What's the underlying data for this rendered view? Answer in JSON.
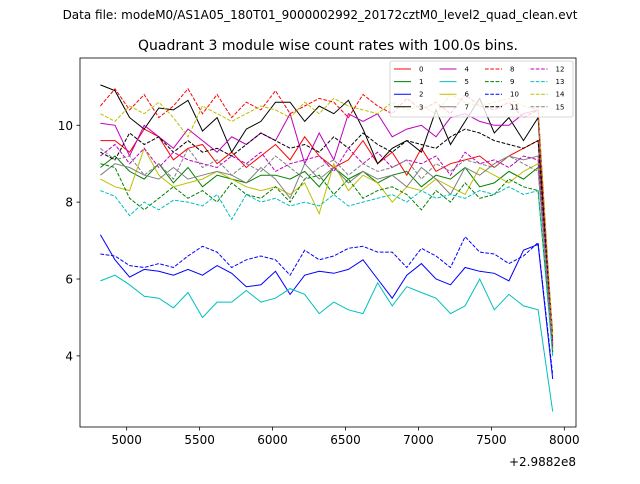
{
  "suptitle": "Data file: modeM0/AS1A05_180T01_9000002992_20172cztM0_level2_quad_clean.evt",
  "chart_data": {
    "type": "line",
    "title": "Quadrant 3 module wise count rates with 100.0s bins.",
    "xlabel": "",
    "ylabel": "",
    "x_offset_label": "+2.9882e8",
    "xlim": [
      4680,
      8080
    ],
    "ylim": [
      2.15,
      11.75
    ],
    "xticks": [
      5000,
      5500,
      6000,
      6500,
      7000,
      7500,
      8000
    ],
    "yticks": [
      4,
      6,
      8,
      10
    ],
    "grid": false,
    "legend_position": "top-right",
    "x": [
      4820,
      4920,
      5020,
      5120,
      5220,
      5320,
      5420,
      5520,
      5620,
      5720,
      5820,
      5920,
      6020,
      6120,
      6220,
      6320,
      6420,
      6520,
      6620,
      6720,
      6820,
      6920,
      7020,
      7120,
      7220,
      7320,
      7420,
      7520,
      7620,
      7720,
      7820,
      7920
    ],
    "series": [
      {
        "name": "0",
        "color": "#ff0000",
        "dash": "solid",
        "values": [
          9.6,
          9.6,
          9.3,
          9.9,
          9.7,
          9.1,
          9.4,
          9.5,
          9.0,
          9.3,
          8.9,
          9.2,
          9.5,
          9.1,
          9.7,
          9.2,
          8.9,
          9.1,
          9.6,
          9.0,
          9.3,
          8.7,
          9.4,
          8.8,
          9.0,
          9.1,
          9.2,
          8.9,
          9.2,
          9.4,
          9.6,
          4.6
        ]
      },
      {
        "name": "1",
        "color": "#008000",
        "dash": "solid",
        "values": [
          8.9,
          9.2,
          8.8,
          8.6,
          9.0,
          8.5,
          8.9,
          8.4,
          8.7,
          8.6,
          8.5,
          8.7,
          8.7,
          8.6,
          8.8,
          8.4,
          8.9,
          8.6,
          8.8,
          8.5,
          8.7,
          8.8,
          8.4,
          8.7,
          8.6,
          8.9,
          8.4,
          8.5,
          8.8,
          8.6,
          8.9,
          4.1
        ]
      },
      {
        "name": "2",
        "color": "#0000ff",
        "dash": "solid",
        "values": [
          7.15,
          6.5,
          6.05,
          6.25,
          6.2,
          6.1,
          6.25,
          6.1,
          6.35,
          6.15,
          5.8,
          5.85,
          6.2,
          5.6,
          6.1,
          6.2,
          6.15,
          6.25,
          6.5,
          6.0,
          5.5,
          6.1,
          6.4,
          6.0,
          5.85,
          6.3,
          6.2,
          6.15,
          5.95,
          6.75,
          6.9,
          3.4
        ]
      },
      {
        "name": "3",
        "color": "#000000",
        "dash": "solid",
        "values": [
          11.05,
          10.9,
          10.2,
          9.9,
          10.45,
          10.4,
          10.65,
          9.85,
          10.2,
          9.3,
          9.9,
          10.1,
          10.6,
          10.6,
          10.1,
          10.5,
          10.3,
          10.65,
          9.9,
          9.0,
          9.4,
          9.6,
          9.3,
          10.4,
          9.5,
          10.1,
          10.7,
          9.8,
          10.2,
          9.6,
          10.2,
          4.2
        ]
      },
      {
        "name": "4",
        "color": "#bf00bf",
        "dash": "solid",
        "values": [
          10.05,
          10.0,
          9.2,
          10.0,
          9.7,
          9.4,
          9.9,
          9.6,
          9.3,
          9.7,
          9.5,
          9.8,
          9.6,
          10.3,
          9.0,
          9.8,
          9.1,
          10.3,
          10.1,
          10.3,
          9.7,
          9.9,
          10.0,
          9.7,
          10.2,
          10.3,
          10.1,
          10.0,
          10.0,
          10.3,
          10.4,
          4.3
        ]
      },
      {
        "name": "5",
        "color": "#00bfbf",
        "dash": "solid",
        "values": [
          5.95,
          6.1,
          5.85,
          5.55,
          5.5,
          5.25,
          5.65,
          5.0,
          5.4,
          5.4,
          5.7,
          5.4,
          5.5,
          5.75,
          5.6,
          5.1,
          5.4,
          5.2,
          5.1,
          5.9,
          5.3,
          5.8,
          5.65,
          5.5,
          5.1,
          5.3,
          6.0,
          5.2,
          5.6,
          5.3,
          5.2,
          2.55
        ]
      },
      {
        "name": "6",
        "color": "#bfbf00",
        "dash": "solid",
        "values": [
          8.6,
          8.4,
          8.3,
          9.4,
          8.7,
          8.4,
          8.5,
          8.6,
          8.8,
          8.6,
          8.4,
          8.3,
          8.4,
          8.2,
          8.5,
          7.7,
          9.0,
          8.3,
          8.7,
          8.5,
          8.0,
          8.4,
          8.3,
          8.6,
          8.4,
          8.2,
          8.9,
          8.7,
          8.5,
          8.8,
          9.0,
          4.0
        ]
      },
      {
        "name": "7",
        "color": "#808080",
        "dash": "solid",
        "values": [
          8.7,
          9.0,
          8.9,
          8.7,
          8.6,
          8.9,
          8.6,
          8.7,
          8.8,
          8.7,
          8.5,
          8.9,
          8.6,
          8.1,
          9.0,
          8.6,
          8.9,
          8.5,
          8.8,
          8.6,
          8.7,
          8.4,
          8.9,
          8.6,
          8.2,
          8.9,
          8.7,
          9.0,
          9.2,
          9.1,
          9.2,
          4.5
        ]
      },
      {
        "name": "8",
        "color": "#ff0000",
        "dash": "dashed",
        "values": [
          10.5,
          10.95,
          10.4,
          10.8,
          10.2,
          10.5,
          10.95,
          10.3,
          10.8,
          10.2,
          10.6,
          10.4,
          10.9,
          10.3,
          10.5,
          10.7,
          10.6,
          10.2,
          10.8,
          10.5,
          10.3,
          10.7,
          10.4,
          10.6,
          10.3,
          10.8,
          10.5,
          10.4,
          10.6,
          10.2,
          10.4,
          4.3
        ]
      },
      {
        "name": "9",
        "color": "#008000",
        "dash": "dashed",
        "values": [
          9.0,
          8.9,
          8.1,
          7.8,
          8.1,
          8.4,
          8.1,
          8.3,
          8.0,
          8.5,
          8.2,
          8.1,
          8.4,
          8.0,
          8.6,
          8.7,
          8.2,
          8.6,
          8.1,
          8.3,
          8.4,
          8.2,
          7.8,
          8.3,
          8.0,
          8.5,
          8.1,
          8.2,
          8.6,
          8.4,
          8.3,
          4.1
        ]
      },
      {
        "name": "10",
        "color": "#0000ff",
        "dash": "dashed",
        "values": [
          6.65,
          6.6,
          6.35,
          6.3,
          6.4,
          6.3,
          6.6,
          6.85,
          6.7,
          6.3,
          6.5,
          6.6,
          6.5,
          6.1,
          6.75,
          6.5,
          6.6,
          6.8,
          6.85,
          6.7,
          6.7,
          6.3,
          6.8,
          6.6,
          6.3,
          7.1,
          6.7,
          6.65,
          6.4,
          6.6,
          6.95,
          3.5
        ]
      },
      {
        "name": "11",
        "color": "#000000",
        "dash": "dashed",
        "values": [
          9.3,
          9.1,
          9.8,
          9.5,
          9.7,
          9.3,
          9.6,
          9.3,
          9.4,
          9.2,
          9.5,
          9.8,
          9.6,
          9.4,
          9.5,
          9.3,
          9.7,
          9.4,
          9.8,
          9.5,
          9.3,
          9.6,
          9.5,
          9.4,
          9.7,
          9.9,
          9.8,
          9.6,
          9.5,
          9.4,
          9.6,
          4.4
        ]
      },
      {
        "name": "12",
        "color": "#bf00bf",
        "dash": "dashed",
        "values": [
          9.2,
          9.5,
          9.0,
          9.4,
          8.9,
          9.3,
          9.1,
          9.0,
          8.9,
          9.2,
          9.0,
          9.3,
          8.8,
          9.0,
          9.1,
          9.2,
          8.8,
          9.4,
          9.0,
          9.3,
          8.9,
          9.1,
          9.0,
          9.2,
          8.7,
          9.3,
          9.0,
          9.1,
          8.9,
          9.2,
          9.1,
          4.3
        ]
      },
      {
        "name": "13",
        "color": "#00bfbf",
        "dash": "dashed",
        "values": [
          8.3,
          8.15,
          7.65,
          8.0,
          7.8,
          8.05,
          8.0,
          7.9,
          8.2,
          7.55,
          8.2,
          8.0,
          8.1,
          7.9,
          8.0,
          7.9,
          8.2,
          7.9,
          8.0,
          8.1,
          8.2,
          8.0,
          8.3,
          8.1,
          8.2,
          8.1,
          8.3,
          8.2,
          8.4,
          8.2,
          8.3,
          4.0
        ]
      },
      {
        "name": "14",
        "color": "#bfbf00",
        "dash": "dashed",
        "values": [
          10.3,
          10.1,
          10.5,
          10.3,
          10.6,
          10.2,
          9.7,
          10.5,
          10.3,
          10.1,
          10.3,
          10.5,
          10.4,
          10.2,
          10.6,
          10.3,
          10.7,
          10.5,
          10.4,
          10.3,
          10.6,
          10.4,
          10.5,
          10.3,
          10.8,
          10.6,
          10.5,
          10.6,
          10.7,
          10.5,
          10.4,
          4.5
        ]
      },
      {
        "name": "15",
        "color": "#808080",
        "dash": "dashed",
        "values": [
          9.4,
          9.1,
          9.2,
          8.7,
          9.0,
          8.6,
          9.4,
          8.9,
          9.1,
          8.7,
          9.0,
          8.8,
          9.2,
          8.9,
          8.6,
          8.9,
          9.1,
          8.7,
          9.0,
          8.8,
          8.9,
          9.1,
          8.6,
          9.0,
          8.8,
          9.1,
          9.0,
          8.9,
          9.2,
          9.0,
          8.8,
          4.2
        ]
      }
    ]
  }
}
